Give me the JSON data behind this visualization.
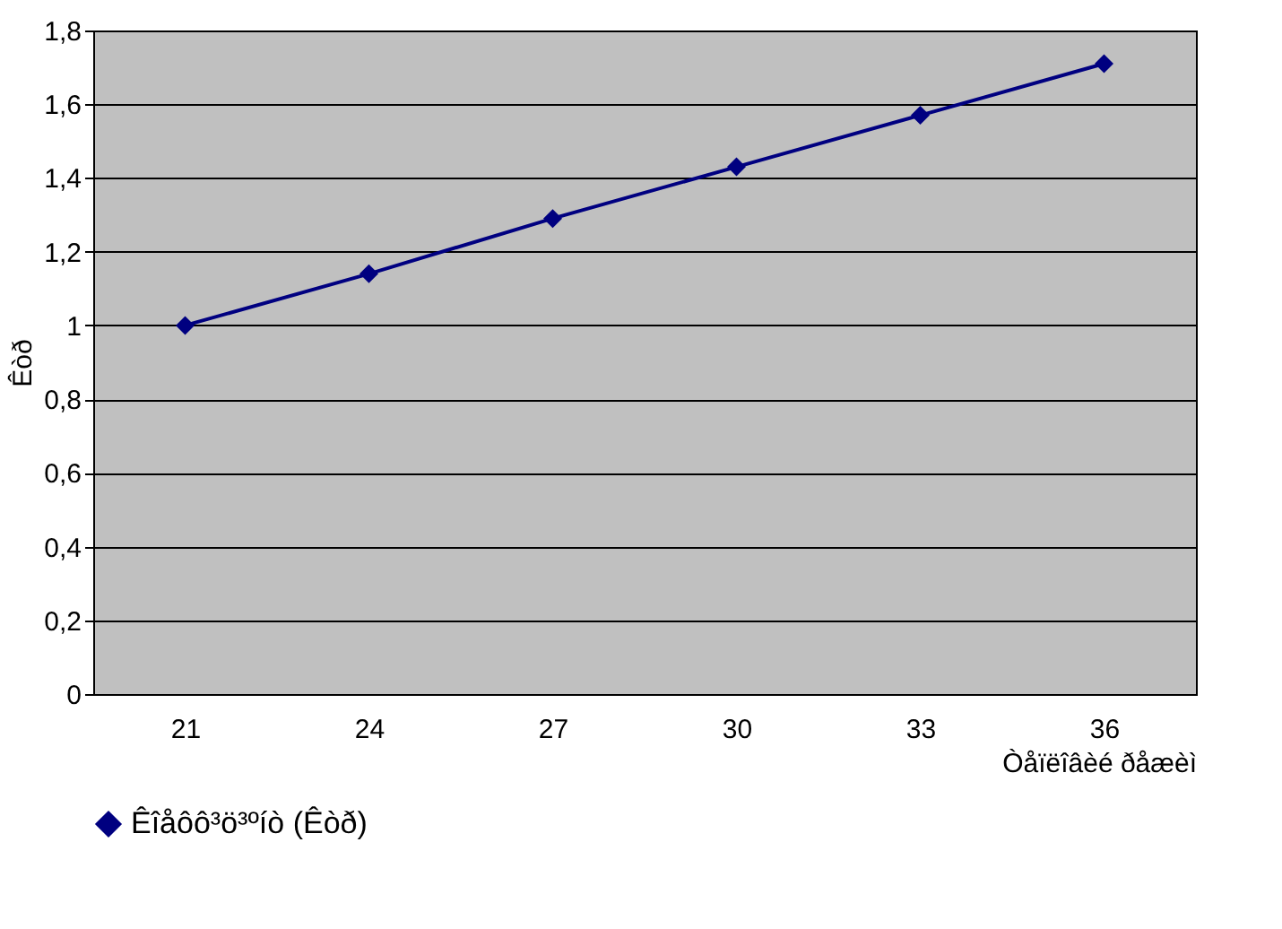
{
  "chart_data": {
    "type": "line",
    "xlabel": "Òåïëîâèé ðåæèì",
    "ylabel": "Êòð",
    "categories": [
      "21",
      "24",
      "27",
      "30",
      "33",
      "36"
    ],
    "series": [
      {
        "name": "Êîåôô³ö³ºíò (Êòð)",
        "color": "#000080",
        "values": [
          1.0,
          1.14,
          1.29,
          1.43,
          1.57,
          1.71
        ]
      }
    ],
    "ylim": [
      0,
      1.8
    ],
    "yticks": [
      0,
      {
        "value": 0.2,
        "label": "0,2"
      },
      {
        "value": 0.4,
        "label": "0,4"
      },
      {
        "value": 0.6,
        "label": "0,6"
      },
      {
        "value": 0.8,
        "label": "0,8"
      },
      1,
      {
        "value": 1.2,
        "label": "1,2"
      },
      {
        "value": 1.4,
        "label": "1,4"
      },
      {
        "value": 1.6,
        "label": "1,6"
      },
      {
        "value": 1.8,
        "label": "1,8"
      }
    ],
    "grid": "y",
    "legend": "bottom",
    "marker": "diamond",
    "line_style": "solid"
  }
}
